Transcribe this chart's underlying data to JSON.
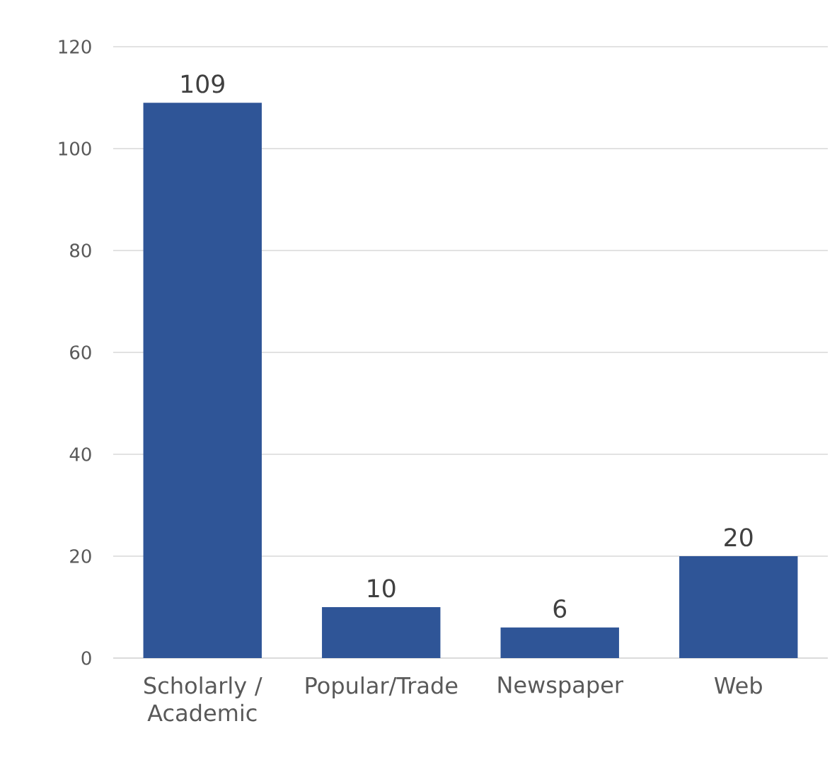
{
  "chart_data": {
    "type": "bar",
    "categories": [
      "Scholarly / Academic",
      "Popular/Trade",
      "Newspaper",
      "Web"
    ],
    "values": [
      109,
      10,
      6,
      20
    ],
    "color": "#2f5597",
    "ylim": [
      0,
      120
    ],
    "yticks": [
      0,
      20,
      40,
      60,
      80,
      100,
      120
    ],
    "grid": "y",
    "data_labels": true
  }
}
